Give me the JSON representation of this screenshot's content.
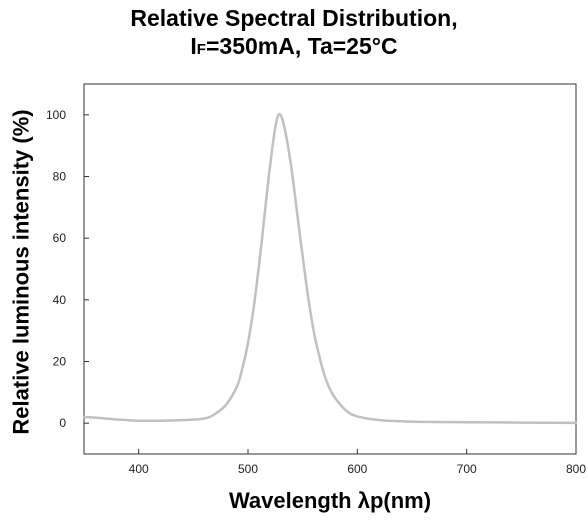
{
  "chart_data": {
    "type": "line",
    "title_line1": "Relative Spectral Distribution,",
    "title_line2_prefix": "I",
    "title_line2_sub": "F",
    "title_line2_rest": "=350mA, Ta=25°C",
    "xlabel": "Wavelength λp(nm)",
    "ylabel": "Relative luminous intensity (%)",
    "xlim": [
      350,
      800
    ],
    "ylim": [
      -10,
      110
    ],
    "x_ticks": [
      400,
      500,
      600,
      700,
      800
    ],
    "y_ticks": [
      0,
      20,
      40,
      60,
      80,
      100
    ],
    "grid": false,
    "series": [
      {
        "color": "#c0c0c0",
        "x": [
          350,
          360,
          370,
          380,
          390,
          400,
          420,
          440,
          460,
          470,
          480,
          490,
          495,
          500,
          505,
          510,
          515,
          520,
          525,
          528,
          531,
          535,
          540,
          545,
          550,
          555,
          560,
          565,
          570,
          575,
          580,
          590,
          600,
          620,
          640,
          660,
          700,
          750,
          800
        ],
        "y": [
          2.0,
          1.8,
          1.5,
          1.2,
          1.0,
          0.8,
          0.8,
          1.0,
          1.5,
          3.0,
          6.0,
          12.0,
          18.0,
          26.0,
          37.0,
          51.0,
          67.0,
          83.0,
          96.0,
          100.0,
          99.0,
          93.0,
          82.0,
          68.0,
          54.0,
          41.0,
          30.0,
          22.0,
          15.5,
          11.0,
          8.0,
          4.0,
          2.2,
          1.0,
          0.6,
          0.4,
          0.3,
          0.2,
          0.1
        ]
      }
    ]
  }
}
